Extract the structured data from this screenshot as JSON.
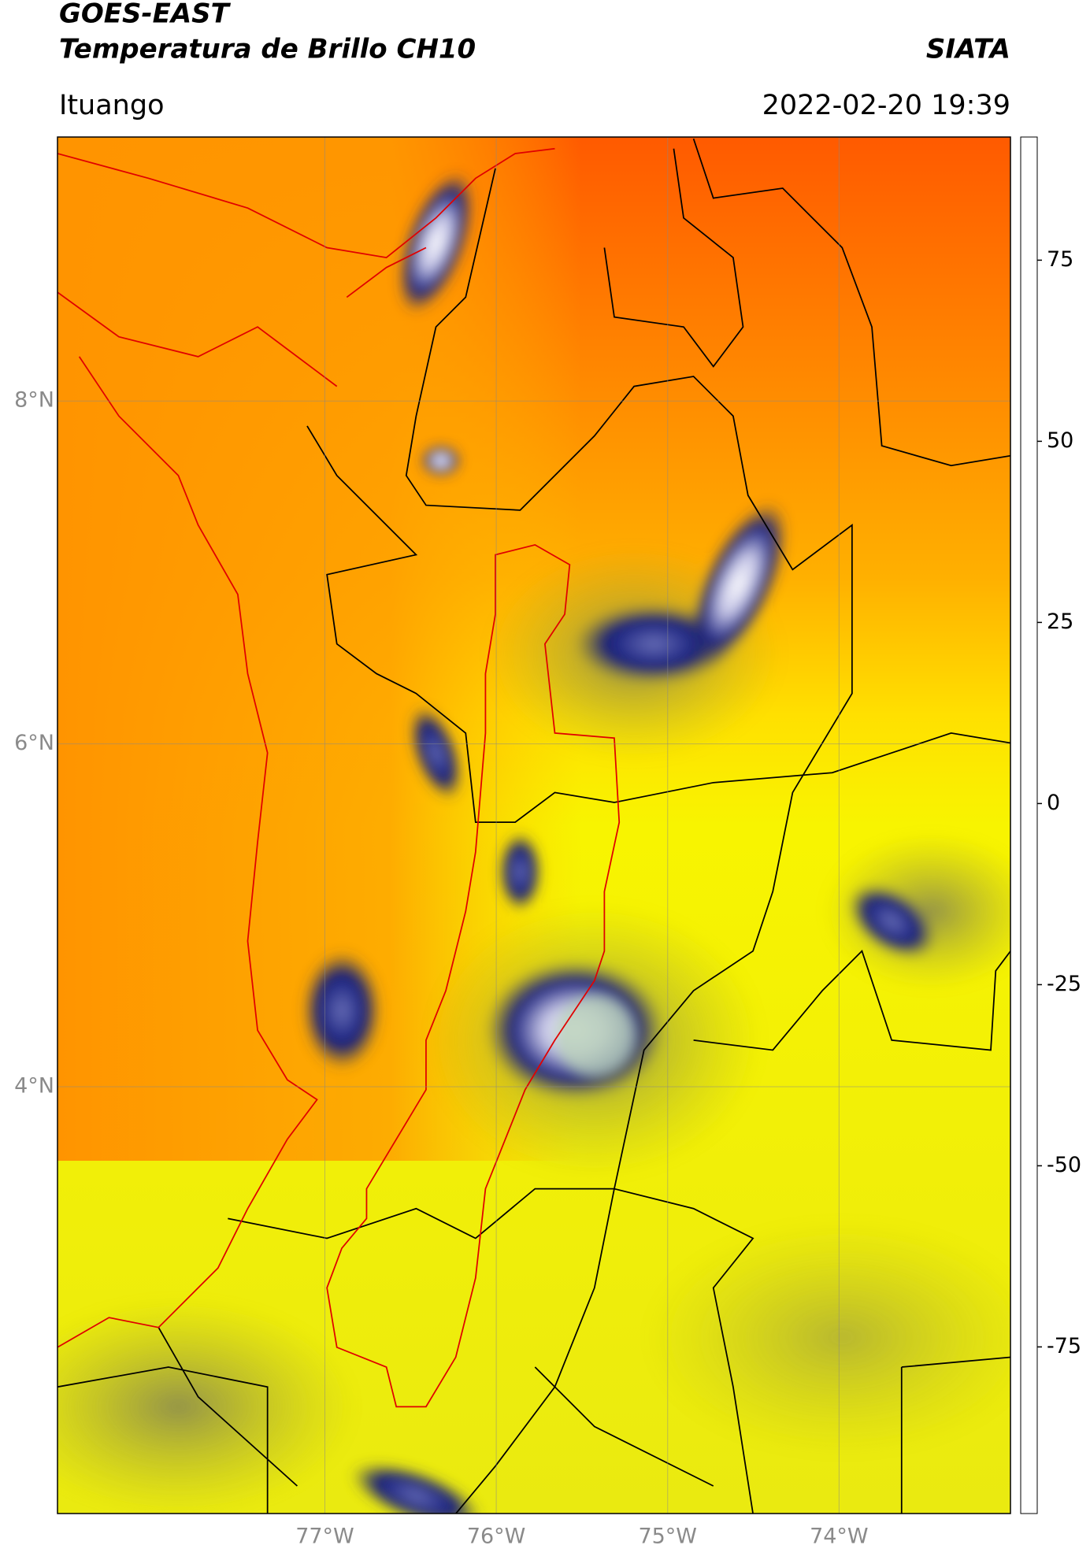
{
  "header": {
    "title": "GOES-EAST",
    "product": "Temperatura de Brillo CH10",
    "source": "SIATA",
    "location": "Ituango",
    "datetime": "2022-02-20 19:39"
  },
  "map": {
    "xlim": [
      -78.56,
      -73.0
    ],
    "ylim": [
      1.51,
      9.54
    ],
    "xticks": [
      {
        "value": -77,
        "label": "77°W"
      },
      {
        "value": -76,
        "label": "76°W"
      },
      {
        "value": -75,
        "label": "75°W"
      },
      {
        "value": -74,
        "label": "74°W"
      }
    ],
    "yticks": [
      {
        "value": 8,
        "label": "8°N"
      },
      {
        "value": 6,
        "label": "6°N"
      },
      {
        "value": 4,
        "label": "4°N"
      }
    ],
    "grid": true
  },
  "colorbar": {
    "clim": [
      -98,
      92
    ],
    "ticks": [
      75,
      50,
      25,
      0,
      -25,
      -50,
      -75
    ],
    "colormap": [
      [
        -98,
        "#ffffff"
      ],
      [
        -93,
        "#ffffff"
      ],
      [
        -92.5,
        "#00e8e0"
      ],
      [
        -83,
        "#1fb5a0"
      ],
      [
        -70,
        "#2a8a3a"
      ],
      [
        -62,
        "#6aa860"
      ],
      [
        -56,
        "#d0e0d0"
      ],
      [
        -50,
        "#ffffff"
      ],
      [
        -40,
        "#7a80c0"
      ],
      [
        -30,
        "#101880"
      ],
      [
        -26,
        "#1a2070"
      ],
      [
        -23,
        "#505050"
      ],
      [
        -18,
        "#a0a040"
      ],
      [
        -12,
        "#f0f000"
      ],
      [
        -8,
        "#ffff00"
      ],
      [
        0,
        "#ff9a00"
      ],
      [
        7,
        "#ff2000"
      ],
      [
        8.4,
        "#ff0000"
      ],
      [
        8.5,
        "#000000"
      ],
      [
        92,
        "#000000"
      ]
    ]
  }
}
